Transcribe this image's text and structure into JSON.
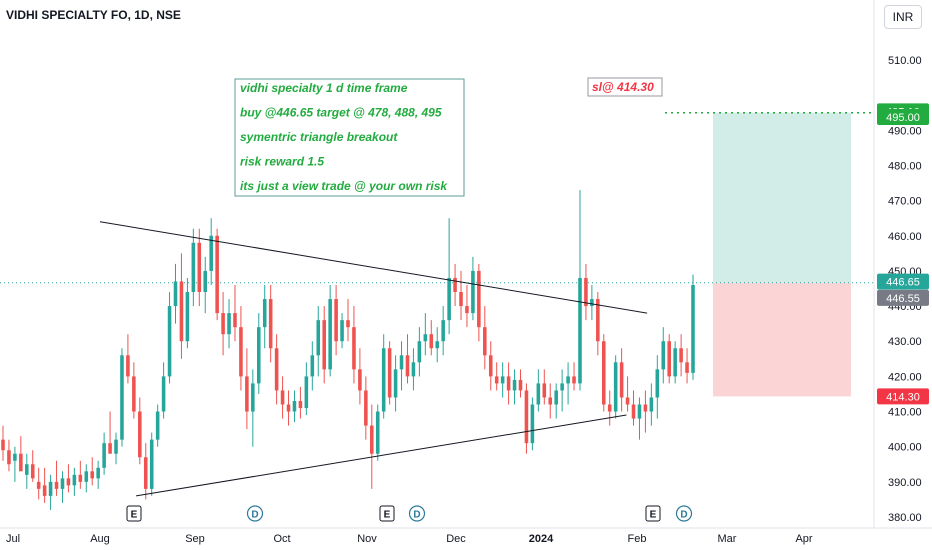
{
  "header": {
    "symbol_title": "VIDHI SPECIALTY FO, 1D, NSE",
    "currency": "INR"
  },
  "annotation": {
    "lines": [
      "vidhi specialty 1 d time frame",
      "buy @446.65 target @ 478, 488, 495",
      "symentric triangle breakout",
      "risk reward 1.5",
      "its just a view trade @ your own risk"
    ],
    "sl_note": "sl@ 414.30"
  },
  "price_labels": {
    "p495_10": "495.10",
    "p495_00": "495.00",
    "p446_65": "446.65",
    "p446_55": "446.55",
    "p414_30": "414.30"
  },
  "events": [
    {
      "label": "E",
      "date": "Aug 15",
      "kind": "earnings"
    },
    {
      "label": "D",
      "date": "Sep 12",
      "kind": "dividend"
    },
    {
      "label": "E",
      "date": "Nov 19",
      "kind": "earnings"
    },
    {
      "label": "D",
      "date": "Nov 28",
      "kind": "dividend"
    },
    {
      "label": "E",
      "date": "Feb 13",
      "kind": "earnings"
    },
    {
      "label": "D",
      "date": "Feb 19",
      "kind": "dividend"
    }
  ],
  "colors": {
    "up": "#26a69a",
    "down": "#ef5350",
    "target_zone": "#d2ede8",
    "stop_zone": "#fbd5d6",
    "target_label": "#22ab3f",
    "stop_label": "#f23645",
    "last_price_label": "#26a69a",
    "gray_label": "#787b86"
  },
  "chart_data": {
    "type": "candlestick",
    "y_axis": {
      "ylim": [
        378,
        517
      ],
      "ticks": [
        "510.00",
        "490.00",
        "480.00",
        "470.00",
        "460.00",
        "450.00",
        "440.00",
        "430.00",
        "420.00",
        "410.00",
        "400.00",
        "390.00",
        "380.00"
      ],
      "tick_values": [
        510,
        490,
        480,
        470,
        460,
        450,
        440,
        430,
        420,
        410,
        400,
        390,
        380
      ]
    },
    "x_axis": {
      "ticks": [
        "Jul",
        "Aug",
        "Sep",
        "Oct",
        "Nov",
        "Dec",
        "2024",
        "Feb",
        "Mar",
        "Apr"
      ]
    },
    "grid": false,
    "triangle_lines": [
      {
        "from": {
          "date": "Aug 1",
          "price": 464
        },
        "to": {
          "date": "Feb 29",
          "price": 438
        }
      },
      {
        "from": {
          "date": "Aug 15",
          "price": 386
        },
        "to": {
          "date": "Feb 21",
          "price": 409
        }
      }
    ],
    "position": {
      "entry": 446.65,
      "target": 495.0,
      "stop": 414.3,
      "target_marker": 495.1,
      "prev_close": 446.55
    },
    "candles": [
      {
        "o": 402,
        "h": 406,
        "l": 396,
        "c": 399
      },
      {
        "o": 399,
        "h": 402,
        "l": 393,
        "c": 395
      },
      {
        "o": 396,
        "h": 400,
        "l": 390,
        "c": 398
      },
      {
        "o": 398,
        "h": 403,
        "l": 394,
        "c": 393
      },
      {
        "o": 392,
        "h": 398,
        "l": 388,
        "c": 395
      },
      {
        "o": 395,
        "h": 399,
        "l": 390,
        "c": 391
      },
      {
        "o": 390,
        "h": 394,
        "l": 385,
        "c": 388
      },
      {
        "o": 389,
        "h": 394,
        "l": 384,
        "c": 386
      },
      {
        "o": 386,
        "h": 392,
        "l": 382,
        "c": 390
      },
      {
        "o": 390,
        "h": 396,
        "l": 386,
        "c": 388
      },
      {
        "o": 388,
        "h": 393,
        "l": 384,
        "c": 391
      },
      {
        "o": 391,
        "h": 395,
        "l": 387,
        "c": 389
      },
      {
        "o": 389,
        "h": 394,
        "l": 386,
        "c": 392
      },
      {
        "o": 392,
        "h": 396,
        "l": 388,
        "c": 390
      },
      {
        "o": 390,
        "h": 395,
        "l": 387,
        "c": 393
      },
      {
        "o": 393,
        "h": 397,
        "l": 389,
        "c": 391
      },
      {
        "o": 391,
        "h": 396,
        "l": 388,
        "c": 394
      },
      {
        "o": 394,
        "h": 404,
        "l": 392,
        "c": 401
      },
      {
        "o": 401,
        "h": 410,
        "l": 399,
        "c": 398
      },
      {
        "o": 398,
        "h": 404,
        "l": 395,
        "c": 402
      },
      {
        "o": 402,
        "h": 428,
        "l": 400,
        "c": 426
      },
      {
        "o": 426,
        "h": 432,
        "l": 418,
        "c": 420
      },
      {
        "o": 420,
        "h": 424,
        "l": 408,
        "c": 410
      },
      {
        "o": 410,
        "h": 414,
        "l": 395,
        "c": 397
      },
      {
        "o": 397,
        "h": 401,
        "l": 385,
        "c": 388
      },
      {
        "o": 388,
        "h": 404,
        "l": 386,
        "c": 402
      },
      {
        "o": 402,
        "h": 412,
        "l": 400,
        "c": 410
      },
      {
        "o": 410,
        "h": 424,
        "l": 408,
        "c": 420
      },
      {
        "o": 420,
        "h": 444,
        "l": 418,
        "c": 440
      },
      {
        "o": 440,
        "h": 452,
        "l": 435,
        "c": 447
      },
      {
        "o": 447,
        "h": 455,
        "l": 425,
        "c": 430
      },
      {
        "o": 430,
        "h": 448,
        "l": 428,
        "c": 444
      },
      {
        "o": 444,
        "h": 462,
        "l": 440,
        "c": 458
      },
      {
        "o": 458,
        "h": 462,
        "l": 440,
        "c": 444
      },
      {
        "o": 444,
        "h": 454,
        "l": 438,
        "c": 450
      },
      {
        "o": 450,
        "h": 465,
        "l": 446,
        "c": 460
      },
      {
        "o": 460,
        "h": 462,
        "l": 436,
        "c": 438
      },
      {
        "o": 438,
        "h": 444,
        "l": 426,
        "c": 432
      },
      {
        "o": 432,
        "h": 442,
        "l": 428,
        "c": 438
      },
      {
        "o": 438,
        "h": 446,
        "l": 430,
        "c": 434
      },
      {
        "o": 434,
        "h": 440,
        "l": 416,
        "c": 420
      },
      {
        "o": 420,
        "h": 428,
        "l": 405,
        "c": 410
      },
      {
        "o": 410,
        "h": 422,
        "l": 400,
        "c": 418
      },
      {
        "o": 418,
        "h": 438,
        "l": 415,
        "c": 434
      },
      {
        "o": 434,
        "h": 446,
        "l": 428,
        "c": 442
      },
      {
        "o": 442,
        "h": 446,
        "l": 424,
        "c": 428
      },
      {
        "o": 428,
        "h": 432,
        "l": 412,
        "c": 416
      },
      {
        "o": 416,
        "h": 420,
        "l": 408,
        "c": 412
      },
      {
        "o": 412,
        "h": 416,
        "l": 406,
        "c": 410
      },
      {
        "o": 410,
        "h": 416,
        "l": 407,
        "c": 413
      },
      {
        "o": 413,
        "h": 417,
        "l": 408,
        "c": 411
      },
      {
        "o": 411,
        "h": 424,
        "l": 409,
        "c": 420
      },
      {
        "o": 420,
        "h": 430,
        "l": 416,
        "c": 426
      },
      {
        "o": 426,
        "h": 440,
        "l": 420,
        "c": 436
      },
      {
        "o": 436,
        "h": 440,
        "l": 418,
        "c": 422
      },
      {
        "o": 422,
        "h": 446,
        "l": 420,
        "c": 442
      },
      {
        "o": 442,
        "h": 446,
        "l": 426,
        "c": 430
      },
      {
        "o": 430,
        "h": 438,
        "l": 428,
        "c": 436
      },
      {
        "o": 436,
        "h": 442,
        "l": 430,
        "c": 434
      },
      {
        "o": 434,
        "h": 440,
        "l": 418,
        "c": 422
      },
      {
        "o": 422,
        "h": 428,
        "l": 412,
        "c": 416
      },
      {
        "o": 416,
        "h": 420,
        "l": 402,
        "c": 406
      },
      {
        "o": 406,
        "h": 412,
        "l": 388,
        "c": 398
      },
      {
        "o": 398,
        "h": 412,
        "l": 396,
        "c": 410
      },
      {
        "o": 410,
        "h": 432,
        "l": 408,
        "c": 428
      },
      {
        "o": 428,
        "h": 430,
        "l": 412,
        "c": 414
      },
      {
        "o": 414,
        "h": 426,
        "l": 410,
        "c": 422
      },
      {
        "o": 422,
        "h": 430,
        "l": 416,
        "c": 426
      },
      {
        "o": 426,
        "h": 432,
        "l": 418,
        "c": 420
      },
      {
        "o": 420,
        "h": 428,
        "l": 416,
        "c": 424
      },
      {
        "o": 424,
        "h": 434,
        "l": 420,
        "c": 430
      },
      {
        "o": 430,
        "h": 438,
        "l": 426,
        "c": 432
      },
      {
        "o": 432,
        "h": 436,
        "l": 426,
        "c": 428
      },
      {
        "o": 428,
        "h": 434,
        "l": 424,
        "c": 430
      },
      {
        "o": 430,
        "h": 440,
        "l": 426,
        "c": 436
      },
      {
        "o": 436,
        "h": 465,
        "l": 432,
        "c": 448
      },
      {
        "o": 448,
        "h": 452,
        "l": 440,
        "c": 444
      },
      {
        "o": 444,
        "h": 450,
        "l": 436,
        "c": 440
      },
      {
        "o": 440,
        "h": 446,
        "l": 434,
        "c": 438
      },
      {
        "o": 438,
        "h": 454,
        "l": 436,
        "c": 450
      },
      {
        "o": 450,
        "h": 452,
        "l": 430,
        "c": 434
      },
      {
        "o": 434,
        "h": 440,
        "l": 422,
        "c": 426
      },
      {
        "o": 426,
        "h": 430,
        "l": 416,
        "c": 420
      },
      {
        "o": 420,
        "h": 424,
        "l": 416,
        "c": 418
      },
      {
        "o": 418,
        "h": 424,
        "l": 414,
        "c": 420
      },
      {
        "o": 420,
        "h": 424,
        "l": 412,
        "c": 416
      },
      {
        "o": 416,
        "h": 422,
        "l": 412,
        "c": 419
      },
      {
        "o": 419,
        "h": 422,
        "l": 414,
        "c": 416
      },
      {
        "o": 416,
        "h": 418,
        "l": 398,
        "c": 401
      },
      {
        "o": 401,
        "h": 414,
        "l": 399,
        "c": 412
      },
      {
        "o": 412,
        "h": 422,
        "l": 410,
        "c": 418
      },
      {
        "o": 418,
        "h": 422,
        "l": 412,
        "c": 414
      },
      {
        "o": 414,
        "h": 418,
        "l": 408,
        "c": 412
      },
      {
        "o": 412,
        "h": 418,
        "l": 408,
        "c": 416
      },
      {
        "o": 416,
        "h": 422,
        "l": 410,
        "c": 418
      },
      {
        "o": 418,
        "h": 424,
        "l": 412,
        "c": 420
      },
      {
        "o": 420,
        "h": 424,
        "l": 416,
        "c": 418
      },
      {
        "o": 418,
        "h": 473,
        "l": 416,
        "c": 448
      },
      {
        "o": 448,
        "h": 452,
        "l": 436,
        "c": 440
      },
      {
        "o": 440,
        "h": 446,
        "l": 436,
        "c": 442
      },
      {
        "o": 442,
        "h": 444,
        "l": 426,
        "c": 430
      },
      {
        "o": 430,
        "h": 432,
        "l": 410,
        "c": 412
      },
      {
        "o": 412,
        "h": 416,
        "l": 406,
        "c": 410
      },
      {
        "o": 410,
        "h": 426,
        "l": 408,
        "c": 424
      },
      {
        "o": 424,
        "h": 428,
        "l": 410,
        "c": 414
      },
      {
        "o": 414,
        "h": 420,
        "l": 410,
        "c": 412
      },
      {
        "o": 412,
        "h": 416,
        "l": 406,
        "c": 408
      },
      {
        "o": 408,
        "h": 414,
        "l": 402,
        "c": 412
      },
      {
        "o": 412,
        "h": 416,
        "l": 404,
        "c": 410
      },
      {
        "o": 410,
        "h": 418,
        "l": 406,
        "c": 414
      },
      {
        "o": 414,
        "h": 426,
        "l": 408,
        "c": 422
      },
      {
        "o": 422,
        "h": 434,
        "l": 418,
        "c": 430
      },
      {
        "o": 430,
        "h": 432,
        "l": 418,
        "c": 420
      },
      {
        "o": 420,
        "h": 430,
        "l": 418,
        "c": 428
      },
      {
        "o": 428,
        "h": 432,
        "l": 420,
        "c": 424
      },
      {
        "o": 424,
        "h": 428,
        "l": 418,
        "c": 421
      },
      {
        "o": 421,
        "h": 449,
        "l": 419,
        "c": 446
      }
    ]
  }
}
